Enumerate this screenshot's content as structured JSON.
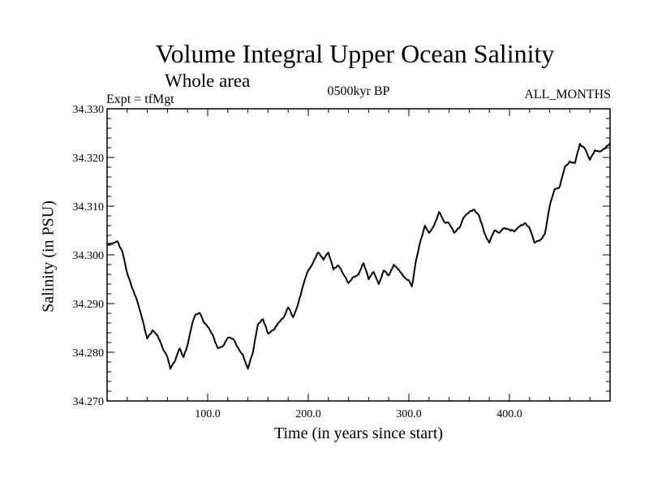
{
  "chart_data": {
    "type": "line",
    "title": "Volume Integral Upper Ocean Salinity",
    "subtitle": "Whole area",
    "annotations": {
      "experiment": "Expt = tfMgt",
      "period": "0500kyr BP",
      "months": "ALL_MONTHS"
    },
    "xlabel": "Time (in years since start)",
    "ylabel": "Salinity (in PSU)",
    "xlim": [
      0,
      500
    ],
    "ylim": [
      34.27,
      34.33
    ],
    "x_ticks": [
      100,
      200,
      300,
      400
    ],
    "x_tick_labels": [
      "100.0",
      "200.0",
      "300.0",
      "400.0"
    ],
    "y_ticks": [
      34.27,
      34.28,
      34.29,
      34.3,
      34.31,
      34.32,
      34.33
    ],
    "y_tick_labels": [
      "34.270",
      "34.280",
      "34.290",
      "34.300",
      "34.310",
      "34.320",
      "34.330"
    ],
    "grid": false,
    "series": [
      {
        "color": "#000000",
        "x": [
          0,
          5,
          10,
          15,
          20,
          25,
          30,
          35,
          40,
          45,
          50,
          55,
          60,
          63,
          68,
          72,
          76,
          80,
          85,
          88,
          92,
          96,
          100,
          105,
          110,
          115,
          120,
          125,
          130,
          135,
          140,
          145,
          150,
          155,
          160,
          165,
          170,
          175,
          180,
          185,
          190,
          195,
          200,
          205,
          210,
          215,
          220,
          225,
          230,
          235,
          240,
          245,
          250,
          255,
          260,
          265,
          270,
          275,
          280,
          285,
          290,
          295,
          300,
          303,
          307,
          312,
          316,
          320,
          325,
          330,
          335,
          340,
          345,
          350,
          355,
          360,
          365,
          370,
          375,
          380,
          385,
          390,
          395,
          400,
          405,
          410,
          415,
          420,
          425,
          430,
          435,
          440,
          445,
          450,
          455,
          460,
          465,
          470,
          475,
          480,
          485,
          490,
          495,
          500
        ],
        "y": [
          34.3023,
          34.3022,
          34.3028,
          34.3008,
          34.2962,
          34.2932,
          34.2905,
          34.2868,
          34.2828,
          34.2845,
          34.2835,
          34.281,
          34.279,
          34.2766,
          34.2785,
          34.2808,
          34.279,
          34.2815,
          34.2862,
          34.2878,
          34.2881,
          34.2862,
          34.2852,
          34.2836,
          34.2808,
          34.2812,
          34.283,
          34.2828,
          34.281,
          34.2795,
          34.2766,
          34.28,
          34.2858,
          34.2868,
          34.2838,
          34.2845,
          34.286,
          34.287,
          34.2892,
          34.2872,
          34.29,
          34.2938,
          34.2968,
          34.2985,
          34.3005,
          34.299,
          34.3005,
          34.297,
          34.2978,
          34.296,
          34.2942,
          34.2955,
          34.296,
          34.2983,
          34.295,
          34.2965,
          34.294,
          34.2968,
          34.2958,
          34.298,
          34.297,
          34.2955,
          34.2948,
          34.2935,
          34.2988,
          34.3032,
          34.306,
          34.3045,
          34.306,
          34.3088,
          34.3068,
          34.3065,
          34.3045,
          34.3055,
          34.3078,
          34.3088,
          34.3093,
          34.308,
          34.3045,
          34.3025,
          34.305,
          34.3045,
          34.3055,
          34.3052,
          34.3048,
          34.3058,
          34.3065,
          34.3055,
          34.3025,
          34.303,
          34.3042,
          34.31,
          34.3135,
          34.314,
          34.318,
          34.3192,
          34.3188,
          34.3228,
          34.3218,
          34.3195,
          34.3215,
          34.3212,
          34.3218,
          34.323
        ]
      }
    ]
  }
}
